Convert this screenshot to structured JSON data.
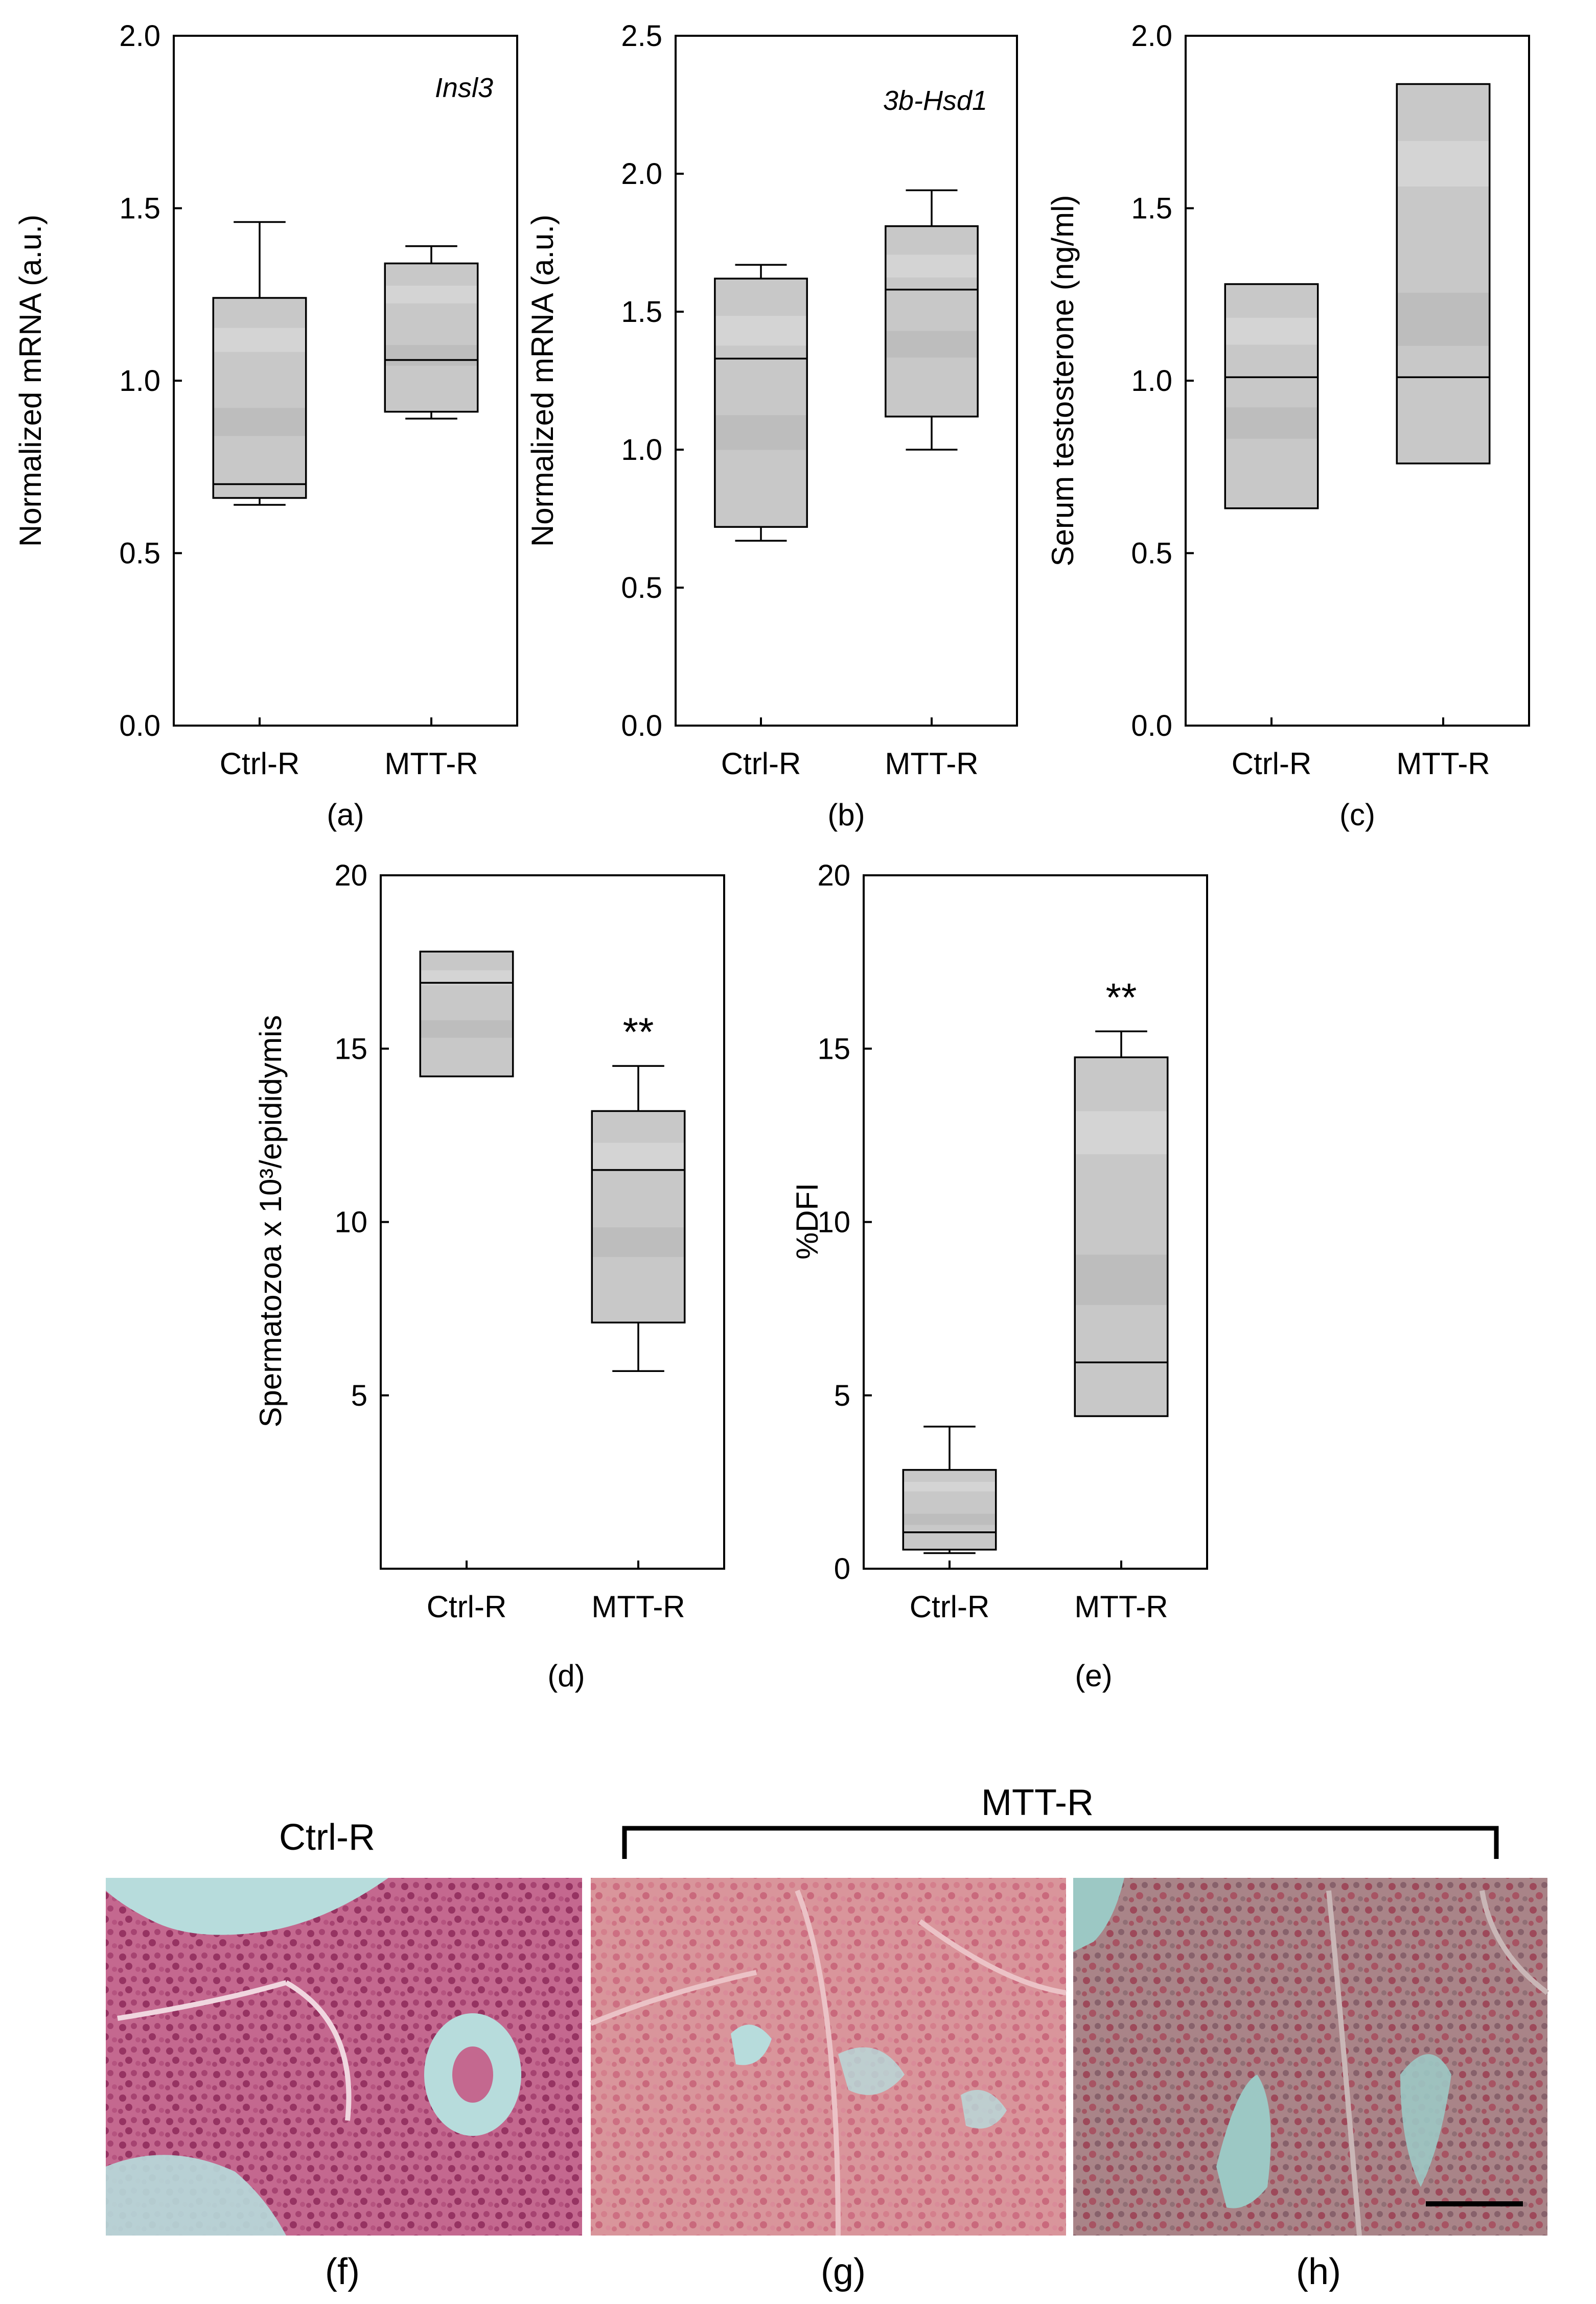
{
  "chart_data": [
    {
      "id": "a",
      "type": "box",
      "panel_label": "(a)",
      "ylabel": "Normalized mRNA (a.u.)",
      "annotation": "Insl3",
      "ylim": [
        0,
        2.0
      ],
      "yticks": [
        "0.0",
        "0.5",
        "1.0",
        "1.5",
        "2.0"
      ],
      "ytick_values": [
        0,
        0.5,
        1,
        1.5,
        2
      ],
      "categories": [
        "Ctrl-R",
        "MTT-R"
      ],
      "boxes": [
        {
          "q1": 0.66,
          "median": 0.7,
          "q3": 1.24,
          "whisker_low": 0.64,
          "whisker_high": 1.46
        },
        {
          "q1": 0.91,
          "median": 1.06,
          "q3": 1.34,
          "whisker_low": 0.89,
          "whisker_high": 1.39
        }
      ],
      "significance": [
        "",
        ""
      ]
    },
    {
      "id": "b",
      "type": "box",
      "panel_label": "(b)",
      "ylabel": "Normalized mRNA (a.u.)",
      "annotation": "3b-Hsd1",
      "ylim": [
        0,
        2.5
      ],
      "yticks": [
        "0.0",
        "0.5",
        "1.0",
        "1.5",
        "2.0",
        "2.5"
      ],
      "ytick_values": [
        0,
        0.5,
        1,
        1.5,
        2,
        2.5
      ],
      "categories": [
        "Ctrl-R",
        "MTT-R"
      ],
      "boxes": [
        {
          "q1": 0.72,
          "median": 1.33,
          "q3": 1.62,
          "whisker_low": 0.67,
          "whisker_high": 1.67
        },
        {
          "q1": 1.12,
          "median": 1.58,
          "q3": 1.81,
          "whisker_low": 1.0,
          "whisker_high": 1.94
        }
      ],
      "significance": [
        "",
        ""
      ]
    },
    {
      "id": "c",
      "type": "box",
      "panel_label": "(c)",
      "ylabel": "Serum testosterone (ng/ml)",
      "annotation": "",
      "ylim": [
        0,
        2.0
      ],
      "yticks": [
        "0.0",
        "0.5",
        "1.0",
        "1.5",
        "2.0"
      ],
      "ytick_values": [
        0,
        0.5,
        1,
        1.5,
        2
      ],
      "categories": [
        "Ctrl-R",
        "MTT-R"
      ],
      "boxes": [
        {
          "q1": 0.63,
          "median": 1.01,
          "q3": 1.28,
          "whisker_low": 0.63,
          "whisker_high": 1.28
        },
        {
          "q1": 0.76,
          "median": 1.01,
          "q3": 1.86,
          "whisker_low": 0.76,
          "whisker_high": 1.86
        }
      ],
      "significance": [
        "",
        ""
      ]
    },
    {
      "id": "d",
      "type": "box",
      "panel_label": "(d)",
      "ylabel": "Spermatozoa x 10³/epididymis",
      "annotation": "",
      "ylim": [
        0,
        20
      ],
      "yticks": [
        "5",
        "10",
        "15",
        "20"
      ],
      "ytick_values": [
        5,
        10,
        15,
        20
      ],
      "categories": [
        "Ctrl-R",
        "MTT-R"
      ],
      "boxes": [
        {
          "q1": 14.2,
          "median": 16.9,
          "q3": 17.8,
          "whisker_low": 14.2,
          "whisker_high": 17.8
        },
        {
          "q1": 7.1,
          "median": 11.5,
          "q3": 13.2,
          "whisker_low": 5.7,
          "whisker_high": 14.5
        }
      ],
      "significance": [
        "",
        "**"
      ]
    },
    {
      "id": "e",
      "type": "box",
      "panel_label": "(e)",
      "ylabel": "%DFI",
      "annotation": "",
      "ylim": [
        0,
        20
      ],
      "yticks": [
        "0",
        "5",
        "10",
        "15",
        "20"
      ],
      "ytick_values": [
        0,
        5,
        10,
        15,
        20
      ],
      "categories": [
        "Ctrl-R",
        "MTT-R"
      ],
      "boxes": [
        {
          "q1": 0.55,
          "median": 1.05,
          "q3": 2.85,
          "whisker_low": 0.45,
          "whisker_high": 4.1
        },
        {
          "q1": 4.4,
          "median": 5.95,
          "q3": 14.75,
          "whisker_low": 4.4,
          "whisker_high": 15.5
        }
      ],
      "significance": [
        "",
        "**"
      ]
    }
  ],
  "micrographs": {
    "group_left": "Ctrl-R",
    "group_right": "MTT-R",
    "labels": [
      "(f)",
      "(g)",
      "(h)"
    ]
  },
  "colors": {
    "box_fill": "#c8c8c8",
    "band_dark": "#b6b6b6",
    "band_light": "#d8d8d8",
    "stroke": "#000000",
    "tissue_ctrl": "#c4688f",
    "tissue_mtt_g": "#d9959b",
    "tissue_mtt_h": "#a98488",
    "lumen": "#b7dcdc"
  }
}
